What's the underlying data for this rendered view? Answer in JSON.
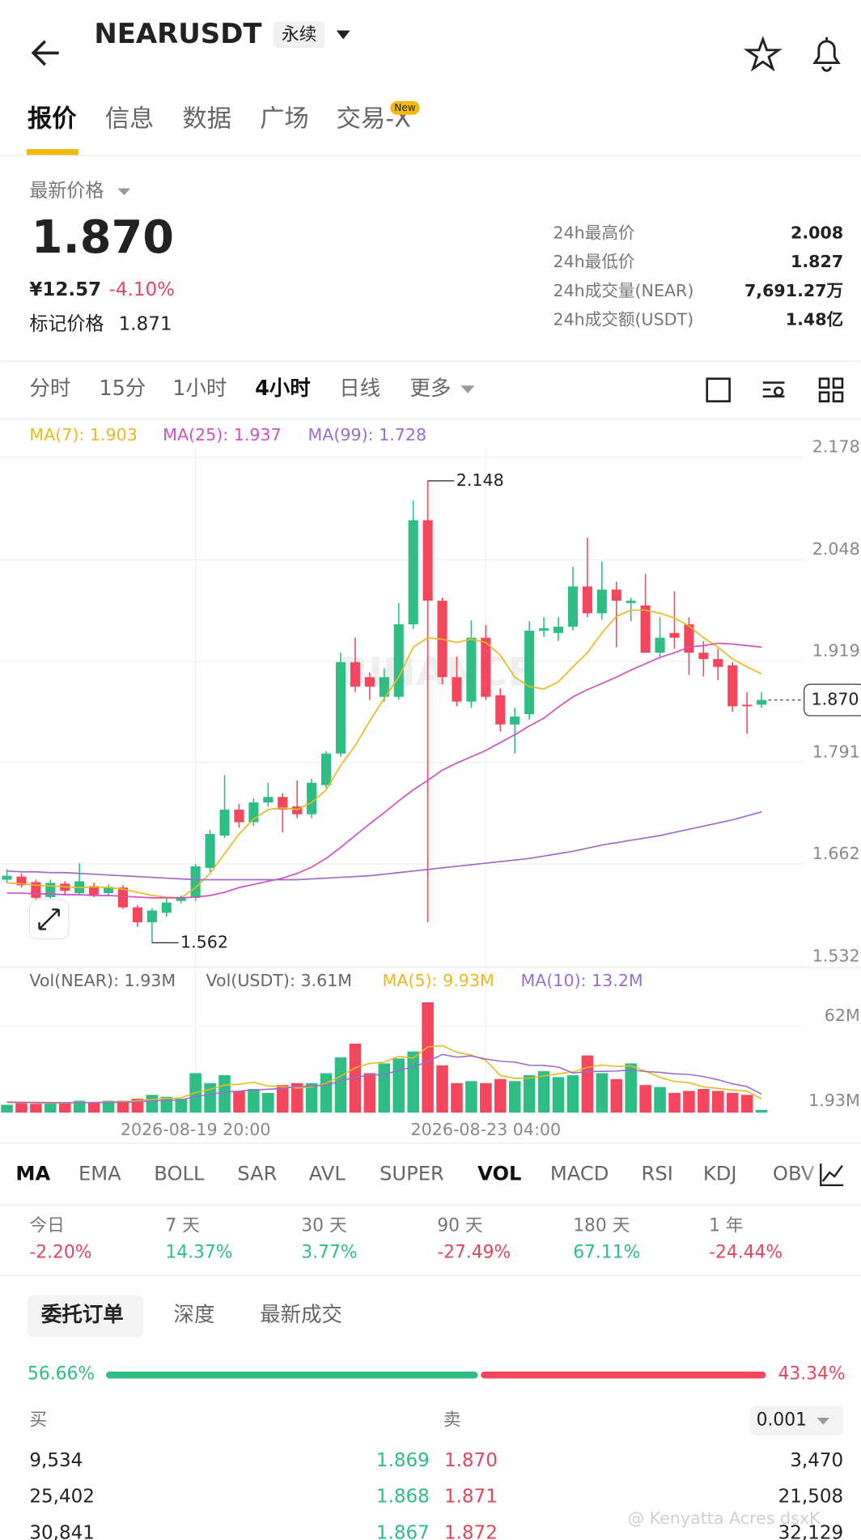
{
  "header": {
    "symbol": "NEARUSDT",
    "contract": "永续"
  },
  "tabs": [
    "报价",
    "信息",
    "数据",
    "广场",
    "交易-X"
  ],
  "tab_badge": "New",
  "quote": {
    "price_type": "最新价格",
    "last_price": "1.870",
    "cny": "¥12.57",
    "change": "-4.10%",
    "mark_label": "标记价格",
    "mark_price": "1.871",
    "stats": [
      [
        "24h最高价",
        "2.008"
      ],
      [
        "24h最低价",
        "1.827"
      ],
      [
        "24h成交量(NEAR)",
        "7,691.27万"
      ],
      [
        "24h成交额(USDT)",
        "1.48亿"
      ]
    ]
  },
  "timeframes": [
    "分时",
    "15分",
    "1小时",
    "4小时",
    "日线",
    "更多"
  ],
  "chart_data": [
    {
      "type": "candlestick",
      "watermark": "BINANCE",
      "ylim": [
        1.532,
        2.178
      ],
      "yticks": [
        2.178,
        2.048,
        1.919,
        1.791,
        1.662,
        1.532
      ],
      "grid": true,
      "up_color": "#2ebd85",
      "down_color": "#f6465d",
      "open": [
        1.642,
        1.646,
        1.639,
        1.62,
        1.637,
        1.625,
        1.634,
        1.625,
        1.632,
        1.607,
        1.588,
        1.6,
        1.615,
        1.619,
        1.657,
        1.698,
        1.731,
        1.715,
        1.74,
        1.747,
        1.735,
        1.725,
        1.762,
        1.802,
        1.918,
        1.899,
        1.874,
        1.874,
        1.966,
        2.098,
        1.996,
        1.899,
        1.868,
        1.949,
        1.876,
        1.839,
        1.852,
        1.958,
        1.955,
        1.963,
        2.014,
        1.98,
        2.01,
        1.993,
        1.99,
        1.93,
        1.955,
        1.966,
        1.93,
        1.922,
        1.914,
        1.864,
        1.864
      ],
      "high": [
        1.655,
        1.65,
        1.642,
        1.642,
        1.64,
        1.663,
        1.638,
        1.636,
        1.635,
        1.61,
        1.606,
        1.618,
        1.622,
        1.662,
        1.705,
        1.775,
        1.738,
        1.745,
        1.765,
        1.752,
        1.768,
        1.77,
        1.805,
        1.93,
        1.949,
        1.905,
        1.91,
        1.993,
        2.123,
        2.148,
        2.0,
        1.925,
        1.971,
        1.965,
        1.885,
        1.86,
        1.97,
        1.975,
        1.975,
        2.039,
        2.076,
        2.046,
        2.02,
        2.0,
        2.03,
        1.975,
        2.008,
        1.975,
        1.945,
        1.935,
        1.918,
        1.88,
        1.88
      ],
      "low": [
        1.638,
        1.632,
        1.617,
        1.618,
        1.622,
        1.622,
        1.62,
        1.622,
        1.605,
        1.582,
        1.562,
        1.595,
        1.612,
        1.615,
        1.652,
        1.695,
        1.708,
        1.71,
        1.735,
        1.702,
        1.72,
        1.72,
        1.758,
        1.798,
        1.88,
        1.87,
        1.868,
        1.87,
        1.96,
        1.588,
        1.89,
        1.862,
        1.86,
        1.87,
        1.83,
        1.802,
        1.845,
        1.95,
        1.945,
        1.958,
        1.975,
        1.972,
        1.937,
        1.97,
        1.93,
        1.925,
        1.935,
        1.902,
        1.9,
        1.895,
        1.855,
        1.827,
        1.86
      ],
      "close": [
        1.647,
        1.635,
        1.619,
        1.638,
        1.628,
        1.64,
        1.623,
        1.633,
        1.607,
        1.588,
        1.603,
        1.613,
        1.62,
        1.659,
        1.7,
        1.731,
        1.715,
        1.74,
        1.747,
        1.731,
        1.725,
        1.765,
        1.802,
        1.918,
        1.887,
        1.887,
        1.899,
        1.966,
        2.098,
        1.996,
        1.899,
        1.868,
        1.949,
        1.874,
        1.839,
        1.849,
        1.958,
        1.961,
        1.963,
        2.014,
        1.98,
        2.01,
        1.996,
        1.996,
        1.93,
        1.949,
        1.949,
        1.93,
        1.922,
        1.912,
        1.862,
        1.862,
        1.87
      ],
      "series": [
        {
          "name": "MA(7): 1.903",
          "color": "#e8b923",
          "values": [
            1.638,
            1.637,
            1.635,
            1.634,
            1.633,
            1.632,
            1.633,
            1.632,
            1.63,
            1.626,
            1.622,
            1.62,
            1.619,
            1.632,
            1.65,
            1.675,
            1.7,
            1.719,
            1.731,
            1.733,
            1.731,
            1.74,
            1.756,
            1.787,
            1.812,
            1.843,
            1.872,
            1.899,
            1.937,
            1.949,
            1.947,
            1.943,
            1.947,
            1.943,
            1.927,
            1.899,
            1.887,
            1.884,
            1.893,
            1.912,
            1.93,
            1.955,
            1.976,
            1.984,
            1.984,
            1.98,
            1.974,
            1.964,
            1.949,
            1.937,
            1.922,
            1.912,
            1.903
          ]
        },
        {
          "name": "MA(25): 1.937",
          "color": "#d24fc0",
          "values": [
            1.625,
            1.625,
            1.624,
            1.624,
            1.623,
            1.623,
            1.622,
            1.622,
            1.621,
            1.62,
            1.619,
            1.619,
            1.619,
            1.62,
            1.622,
            1.626,
            1.632,
            1.636,
            1.64,
            1.644,
            1.65,
            1.658,
            1.669,
            1.683,
            1.698,
            1.713,
            1.727,
            1.742,
            1.756,
            1.768,
            1.781,
            1.79,
            1.798,
            1.806,
            1.816,
            1.826,
            1.837,
            1.847,
            1.861,
            1.874,
            1.883,
            1.891,
            1.899,
            1.908,
            1.916,
            1.924,
            1.93,
            1.937,
            1.939,
            1.942,
            1.941,
            1.939,
            1.937
          ]
        },
        {
          "name": "MA(99): 1.728",
          "color": "#9b6ec9",
          "values": [
            1.653,
            1.652,
            1.652,
            1.651,
            1.651,
            1.65,
            1.649,
            1.648,
            1.647,
            1.646,
            1.645,
            1.644,
            1.643,
            1.642,
            1.642,
            1.642,
            1.642,
            1.642,
            1.642,
            1.642,
            1.642,
            1.643,
            1.644,
            1.645,
            1.646,
            1.647,
            1.649,
            1.651,
            1.653,
            1.655,
            1.657,
            1.659,
            1.661,
            1.663,
            1.665,
            1.667,
            1.669,
            1.672,
            1.675,
            1.678,
            1.682,
            1.686,
            1.689,
            1.692,
            1.695,
            1.698,
            1.702,
            1.706,
            1.71,
            1.714,
            1.718,
            1.723,
            1.728
          ]
        }
      ],
      "last_price": {
        "value": 1.87,
        "label": "1.870"
      }
    },
    {
      "type": "bar",
      "legend": [
        "Vol(NEAR): 1.93M",
        "Vol(USDT): 3.61M"
      ],
      "categories": [
        null,
        null,
        null,
        null,
        null,
        null,
        null,
        null,
        null,
        null,
        null,
        null,
        null,
        "2026-08-19 20:00",
        null,
        null,
        null,
        null,
        null,
        null,
        null,
        null,
        null,
        null,
        null,
        null,
        null,
        null,
        null,
        null,
        null,
        null,
        null,
        "2026-08-23 04:00",
        null,
        null,
        null,
        null,
        null,
        null,
        null,
        null,
        null,
        null,
        null,
        null,
        null,
        null,
        null,
        null,
        null,
        null,
        null
      ],
      "values": [
        5.6,
        7.0,
        6.3,
        7.0,
        7.0,
        8.5,
        7.0,
        8.5,
        8.5,
        9.9,
        12.7,
        11.3,
        9.9,
        28.2,
        21.1,
        26.8,
        15.5,
        16.9,
        14.1,
        19.7,
        21.1,
        21.1,
        28.2,
        39.5,
        49.3,
        28.2,
        35.2,
        38.7,
        43.7,
        78.9,
        33.8,
        21.1,
        22.5,
        21.1,
        24.0,
        22.5,
        26.8,
        29.6,
        25.4,
        26.8,
        40.9,
        28.2,
        24.0,
        35.2,
        19.7,
        18.3,
        14.1,
        15.5,
        16.9,
        15.5,
        14.1,
        12.7,
        1.93
      ],
      "ylim": [
        0,
        80
      ],
      "yticks": [
        {
          "value": 62,
          "label": "62M"
        }
      ],
      "current": {
        "value": 1.93,
        "label": "1.93M"
      },
      "series": [
        {
          "name": "MA(5): 9.93M",
          "color": "#e8b923",
          "values": [
            7.2,
            7.3,
            7.0,
            6.8,
            6.9,
            7.2,
            7.2,
            7.6,
            7.9,
            8.5,
            9.3,
            10.2,
            10.5,
            14.4,
            16.6,
            19.7,
            20.3,
            21.7,
            19.0,
            18.6,
            17.5,
            18.3,
            21.0,
            26.1,
            32.0,
            35.2,
            36.1,
            40.2,
            39.0,
            47.0,
            47.9,
            43.2,
            41.1,
            37.5,
            26.5,
            24.5,
            24.7,
            26.3,
            27.7,
            29.1,
            32.3,
            34.1,
            33.1,
            33.4,
            29.6,
            25.2,
            22.3,
            21.4,
            18.4,
            17.3,
            16.1,
            15.4,
            9.93
          ]
        },
        {
          "name": "MA(10): 13.2M",
          "color": "#9b6ec9",
          "values": [
            7.5,
            7.4,
            7.3,
            7.2,
            7.1,
            7.1,
            7.2,
            7.3,
            7.4,
            7.7,
            8.3,
            8.7,
            9.0,
            11.5,
            12.9,
            14.6,
            15.4,
            16.2,
            16.7,
            17.3,
            18.6,
            19.0,
            19.6,
            22.6,
            25.3,
            26.8,
            27.2,
            30.3,
            32.6,
            36.5,
            41.6,
            39.7,
            40.6,
            38.3,
            36.8,
            36.1,
            33.9,
            33.7,
            32.6,
            28.3,
            29.4,
            29.5,
            29.7,
            30.5,
            29.4,
            28.8,
            27.7,
            27.3,
            25.8,
            23.5,
            20.6,
            18.6,
            13.2
          ]
        }
      ]
    }
  ],
  "indicators": [
    "MA",
    "EMA",
    "BOLL",
    "SAR",
    "AVL",
    "SUPER",
    "VOL",
    "MACD",
    "RSI",
    "KDJ",
    "OBV"
  ],
  "performance": [
    [
      "今日",
      "-2.20%"
    ],
    [
      "7 天",
      "14.37%"
    ],
    [
      "30 天",
      "3.77%"
    ],
    [
      "90 天",
      "-27.49%"
    ],
    [
      "180 天",
      "67.11%"
    ],
    [
      "1 年",
      "-24.44%"
    ]
  ],
  "order_book": {
    "tabs": [
      "委托订单",
      "深度",
      "最新成交"
    ],
    "buy_ratio": {
      "value": 56.66,
      "label": "56.66%"
    },
    "sell_ratio": {
      "value": 43.34,
      "label": "43.34%"
    },
    "buy_label": "买",
    "sell_label": "卖",
    "precision": "0.001",
    "rows": [
      [
        "9,534",
        "1.869",
        "1.870",
        "3,470"
      ],
      [
        "25,402",
        "1.868",
        "1.871",
        "21,508"
      ],
      [
        "30,841",
        "1.867",
        "1.872",
        "32,129"
      ]
    ]
  },
  "watermark": "@ Kenyatta Acres dsxK"
}
